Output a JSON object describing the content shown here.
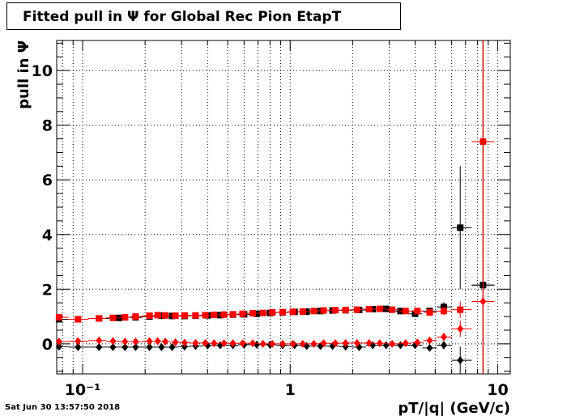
{
  "title": "Fitted pull in  Ψ  for Global Rec Pion EtapT",
  "timestamp": "Sat Jun 30 13:57:50 2018",
  "colors": {
    "black_series": "#000000",
    "red_series": "#ff0000",
    "grid": "#000000"
  },
  "chart_data": {
    "type": "scatter",
    "title": "Fitted pull in  Ψ  for Global Rec Pion EtapT",
    "xlabel": "pT/|q| (GeV/c)",
    "ylabel": "pull in  Ψ",
    "xscale": "log",
    "xlim": [
      0.075,
      11.5
    ],
    "ylim": [
      -1.1,
      11.1
    ],
    "grid": true,
    "x_tick_labels": [
      "10⁻¹",
      "1",
      "10"
    ],
    "y_tick_labels": [
      "0",
      "2",
      "4",
      "6",
      "8",
      "10"
    ],
    "series": [
      {
        "marker": "square",
        "color": "#000000",
        "x": [
          0.077,
          0.095,
          0.12,
          0.15,
          0.18,
          0.21,
          0.24,
          0.27,
          0.31,
          0.35,
          0.4,
          0.46,
          0.53,
          0.6,
          0.69,
          0.8,
          0.92,
          1.05,
          1.2,
          1.4,
          1.6,
          1.85,
          2.15,
          2.5,
          2.9,
          3.4,
          4.0,
          4.7,
          5.5,
          6.6,
          8.5
        ],
        "y": [
          0.9,
          0.9,
          0.93,
          0.95,
          0.97,
          1.0,
          1.03,
          1.02,
          1.02,
          1.03,
          1.04,
          1.05,
          1.07,
          1.08,
          1.1,
          1.13,
          1.15,
          1.17,
          1.18,
          1.2,
          1.22,
          1.23,
          1.24,
          1.27,
          1.28,
          1.2,
          1.1,
          1.2,
          1.35,
          4.25,
          2.15
        ],
        "y_err": [
          0.06,
          0.04,
          0.03,
          0.03,
          0.03,
          0.03,
          0.03,
          0.03,
          0.03,
          0.03,
          0.03,
          0.03,
          0.03,
          0.03,
          0.03,
          0.03,
          0.03,
          0.03,
          0.03,
          0.03,
          0.03,
          0.04,
          0.04,
          0.05,
          0.06,
          0.08,
          0.1,
          0.12,
          0.18,
          2.25,
          12
        ]
      },
      {
        "marker": "square",
        "color": "#ff0000",
        "x": [
          0.077,
          0.095,
          0.12,
          0.14,
          0.16,
          0.18,
          0.21,
          0.23,
          0.25,
          0.28,
          0.31,
          0.35,
          0.39,
          0.43,
          0.48,
          0.53,
          0.59,
          0.66,
          0.74,
          0.82,
          0.92,
          1.03,
          1.15,
          1.3,
          1.45,
          1.65,
          1.85,
          2.1,
          2.4,
          2.7,
          3.1,
          3.6,
          4.1,
          4.7,
          5.5,
          6.6,
          8.5
        ],
        "y": [
          0.97,
          0.9,
          0.93,
          0.95,
          0.97,
          1.0,
          1.03,
          1.05,
          1.04,
          1.03,
          1.04,
          1.04,
          1.05,
          1.06,
          1.07,
          1.08,
          1.1,
          1.12,
          1.13,
          1.15,
          1.16,
          1.17,
          1.18,
          1.2,
          1.22,
          1.23,
          1.24,
          1.25,
          1.27,
          1.28,
          1.25,
          1.2,
          1.2,
          1.15,
          1.2,
          1.25,
          7.4
        ],
        "y_err": [
          0.06,
          0.04,
          0.03,
          0.03,
          0.03,
          0.03,
          0.03,
          0.03,
          0.03,
          0.03,
          0.03,
          0.03,
          0.03,
          0.03,
          0.03,
          0.03,
          0.03,
          0.03,
          0.03,
          0.03,
          0.03,
          0.03,
          0.03,
          0.03,
          0.03,
          0.03,
          0.04,
          0.04,
          0.05,
          0.05,
          0.06,
          0.07,
          0.08,
          0.1,
          0.15,
          0.3,
          12
        ]
      },
      {
        "marker": "diamond",
        "color": "#000000",
        "x": [
          0.077,
          0.095,
          0.12,
          0.14,
          0.16,
          0.18,
          0.21,
          0.24,
          0.27,
          0.31,
          0.35,
          0.4,
          0.46,
          0.53,
          0.6,
          0.69,
          0.8,
          0.92,
          1.05,
          1.2,
          1.4,
          1.6,
          1.85,
          2.15,
          2.5,
          2.9,
          3.4,
          4.0,
          4.7,
          5.5,
          6.6,
          8.5
        ],
        "y": [
          -0.1,
          -0.12,
          -0.12,
          -0.12,
          -0.12,
          -0.12,
          -0.12,
          -0.12,
          -0.12,
          -0.1,
          -0.08,
          -0.06,
          -0.05,
          -0.05,
          -0.03,
          -0.03,
          -0.03,
          -0.05,
          -0.05,
          -0.08,
          -0.08,
          -0.08,
          -0.1,
          -0.12,
          -0.05,
          -0.05,
          -0.05,
          -0.05,
          -0.15,
          -0.05,
          -0.6,
          2.15
        ],
        "y_err": [
          0.05,
          0.04,
          0.03,
          0.03,
          0.03,
          0.03,
          0.03,
          0.03,
          0.03,
          0.03,
          0.03,
          0.03,
          0.03,
          0.03,
          0.03,
          0.03,
          0.03,
          0.03,
          0.03,
          0.03,
          0.03,
          0.03,
          0.04,
          0.04,
          0.05,
          0.06,
          0.07,
          0.08,
          0.1,
          0.15,
          0.5,
          12
        ]
      },
      {
        "marker": "diamond",
        "color": "#ff0000",
        "x": [
          0.077,
          0.095,
          0.12,
          0.14,
          0.16,
          0.18,
          0.21,
          0.23,
          0.25,
          0.28,
          0.31,
          0.35,
          0.39,
          0.43,
          0.48,
          0.53,
          0.59,
          0.66,
          0.74,
          0.82,
          0.92,
          1.03,
          1.15,
          1.3,
          1.45,
          1.65,
          1.85,
          2.1,
          2.4,
          2.7,
          3.1,
          3.6,
          4.1,
          4.7,
          5.5,
          6.6,
          8.5
        ],
        "y": [
          0.08,
          0.1,
          0.12,
          0.1,
          0.08,
          0.08,
          0.1,
          0.1,
          0.08,
          0.06,
          0.04,
          0.03,
          0.03,
          0.02,
          0.02,
          0.02,
          0.02,
          0.02,
          0.0,
          0.0,
          0.0,
          0.0,
          0.0,
          0.0,
          0.02,
          0.02,
          0.03,
          0.03,
          0.03,
          0.02,
          0.0,
          0.02,
          0.05,
          0.12,
          0.25,
          0.55,
          1.55
        ],
        "y_err": [
          0.05,
          0.04,
          0.03,
          0.03,
          0.03,
          0.03,
          0.03,
          0.03,
          0.03,
          0.03,
          0.03,
          0.03,
          0.03,
          0.03,
          0.03,
          0.03,
          0.03,
          0.03,
          0.03,
          0.03,
          0.03,
          0.03,
          0.03,
          0.03,
          0.03,
          0.03,
          0.04,
          0.04,
          0.05,
          0.05,
          0.06,
          0.07,
          0.08,
          0.1,
          0.15,
          0.3,
          12
        ]
      }
    ]
  }
}
